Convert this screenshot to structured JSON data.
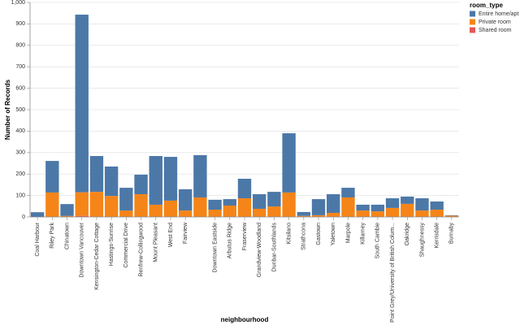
{
  "chart_data": {
    "type": "stacked_bar",
    "x_label": "neighbourhood",
    "y_label": "Number of Records",
    "legend_title": "room_type",
    "legend_position": "top-right",
    "grid": true,
    "ylim": [
      0,
      1000
    ],
    "yticks": [
      0,
      100,
      200,
      300,
      400,
      500,
      600,
      700,
      800,
      900,
      {
        "value": 1000,
        "label": "1,000"
      }
    ],
    "categories": [
      "Coal Harbour",
      "Riley Park",
      "Chinatown",
      "Downtown Vancouver",
      "Kensington-Cedar Cottage",
      "Hastings-Sunrise",
      "Commercial Drive",
      "Renfrew-Collingwood",
      "Mount Pleasant",
      "West End",
      "Fairview",
      null,
      "Downtown Eastside",
      "Arbutus Ridge",
      "Fraserview",
      "Grandview-Woodland",
      "Dunbar-Southlands",
      "Kitsilano",
      "Strathcona",
      "Gastown",
      "Yaletown",
      "Marpole",
      "Killarney",
      "South Cambie",
      "Point Grey/University of British Colum...",
      "Oakridge",
      "Shaughnessy",
      "Kerrisdale",
      "Burnaby"
    ],
    "series": [
      {
        "name": "Entire home/apt",
        "color": "#4c78a8",
        "values": [
          22,
          147,
          55,
          828,
          167,
          137,
          106,
          91,
          227,
          204,
          99,
          197,
          46,
          30,
          91,
          68,
          68,
          276,
          18,
          75,
          87,
          45,
          27,
          31,
          45,
          34,
          57,
          38,
          2
        ]
      },
      {
        "name": "Private room",
        "color": "#f58518",
        "values": [
          0,
          114,
          5,
          110,
          117,
          98,
          30,
          106,
          57,
          76,
          30,
          91,
          34,
          53,
          87,
          38,
          49,
          114,
          5,
          8,
          19,
          91,
          30,
          26,
          42,
          61,
          30,
          34,
          6
        ]
      },
      {
        "name": "Shared room",
        "color": "#e45756",
        "values": [
          0,
          0,
          0,
          5,
          0,
          0,
          0,
          0,
          0,
          0,
          0,
          0,
          0,
          0,
          0,
          0,
          0,
          0,
          0,
          0,
          0,
          0,
          0,
          0,
          0,
          0,
          0,
          0,
          0
        ]
      }
    ]
  }
}
